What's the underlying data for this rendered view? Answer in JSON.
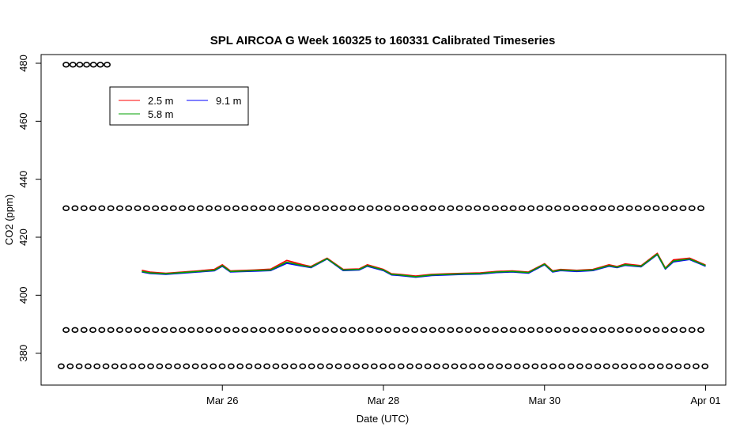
{
  "chart_data": {
    "type": "line",
    "title": "SPL AIRCOA G  Week 160325 to 160331  Calibrated Timeseries",
    "xlabel": "Date (UTC)",
    "ylabel": "CO2 (ppm)",
    "x_unit": "days",
    "xlim": [
      -1.25,
      7.25
    ],
    "ylim": [
      369,
      483
    ],
    "x_ticks": [
      {
        "value": 1,
        "label": "Mar 26"
      },
      {
        "value": 3,
        "label": "Mar 28"
      },
      {
        "value": 5,
        "label": "Mar 30"
      },
      {
        "value": 7,
        "label": "Apr 01"
      }
    ],
    "y_ticks": [
      380,
      400,
      420,
      440,
      460,
      480
    ],
    "legend": {
      "placement": "top-left",
      "entries": [
        {
          "label": "2.5 m",
          "color": "#ff0000"
        },
        {
          "label": "9.1 m",
          "color": "#0000ff"
        },
        {
          "label": "5.8 m",
          "color": "#00a000"
        }
      ]
    },
    "series": [
      {
        "name": "9.1 m",
        "color": "#0000ff",
        "x": [
          0,
          0.1,
          0.3,
          0.5,
          0.7,
          0.9,
          1.0,
          1.1,
          1.2,
          1.4,
          1.6,
          1.8,
          2.0,
          2.1,
          2.3,
          2.5,
          2.7,
          2.8,
          3.0,
          3.1,
          3.2,
          3.4,
          3.6,
          3.8,
          4.0,
          4.2,
          4.4,
          4.6,
          4.8,
          5.0,
          5.1,
          5.2,
          5.4,
          5.6,
          5.8,
          5.9,
          6.0,
          6.2,
          6.4,
          6.5,
          6.6,
          6.8,
          7.0
        ],
        "y": [
          408,
          407.5,
          407.2,
          407.6,
          408,
          408.4,
          410,
          408,
          408.1,
          408.3,
          408.5,
          411,
          410,
          409.5,
          412.5,
          408.5,
          408.7,
          410,
          408.5,
          407,
          406.8,
          406.2,
          406.8,
          407,
          407.2,
          407.3,
          407.8,
          408,
          407.6,
          410.5,
          408,
          408.5,
          408.2,
          408.5,
          410,
          409.5,
          410.3,
          409.8,
          414,
          409,
          411.5,
          412.3,
          410
        ]
      },
      {
        "name": "2.5 m",
        "color": "#ff0000",
        "x": [
          0,
          0.1,
          0.3,
          0.5,
          0.7,
          0.9,
          1.0,
          1.1,
          1.2,
          1.4,
          1.6,
          1.8,
          2.0,
          2.1,
          2.3,
          2.5,
          2.7,
          2.8,
          3.0,
          3.1,
          3.2,
          3.4,
          3.6,
          3.8,
          4.0,
          4.2,
          4.4,
          4.6,
          4.8,
          5.0,
          5.1,
          5.2,
          5.4,
          5.6,
          5.8,
          5.9,
          6.0,
          6.2,
          6.4,
          6.5,
          6.6,
          6.8,
          7.0
        ],
        "y": [
          408.6,
          408,
          407.6,
          408,
          408.4,
          408.9,
          410.5,
          408.4,
          408.5,
          408.7,
          409,
          412,
          410.5,
          409.9,
          412.8,
          408.9,
          409.1,
          410.5,
          408.9,
          407.4,
          407.2,
          406.6,
          407.2,
          407.4,
          407.6,
          407.7,
          408.2,
          408.4,
          408,
          410.9,
          408.4,
          408.9,
          408.6,
          408.9,
          410.5,
          409.9,
          410.8,
          410.2,
          414.5,
          409.4,
          412.2,
          412.8,
          410.4
        ]
      },
      {
        "name": "5.8 m",
        "color": "#00a000",
        "x": [
          0,
          0.1,
          0.3,
          0.5,
          0.7,
          0.9,
          1.0,
          1.1,
          1.2,
          1.4,
          1.6,
          1.8,
          2.0,
          2.1,
          2.3,
          2.5,
          2.7,
          2.8,
          3.0,
          3.1,
          3.2,
          3.4,
          3.6,
          3.8,
          4.0,
          4.2,
          4.4,
          4.6,
          4.8,
          5.0,
          5.1,
          5.2,
          5.4,
          5.6,
          5.8,
          5.9,
          6.0,
          6.2,
          6.4,
          6.5,
          6.6,
          6.8,
          7.0
        ],
        "y": [
          408.2,
          407.7,
          407.4,
          407.8,
          408.2,
          408.6,
          410.2,
          408.2,
          408.3,
          408.5,
          408.7,
          411.4,
          410.2,
          409.7,
          412.6,
          408.7,
          408.9,
          410.2,
          408.7,
          407.2,
          407,
          406.4,
          407,
          407.2,
          407.4,
          407.5,
          408,
          408.2,
          407.8,
          410.7,
          408.2,
          408.7,
          408.4,
          408.7,
          410.2,
          409.7,
          410.5,
          410,
          414.2,
          409.2,
          411.8,
          412.5,
          410.2
        ]
      }
    ],
    "flag_rows": [
      {
        "y": 479.5,
        "x_start": -0.94,
        "x_end": -0.37,
        "step": 0.085
      },
      {
        "y": 430,
        "x_start": -0.94,
        "x_end": 7.0,
        "step": 0.111
      },
      {
        "y": 388,
        "x_start": -0.94,
        "x_end": 7.0,
        "step": 0.111
      },
      {
        "y": 375.5,
        "x_start": -1.0,
        "x_end": 7.0,
        "step": 0.111
      }
    ]
  }
}
